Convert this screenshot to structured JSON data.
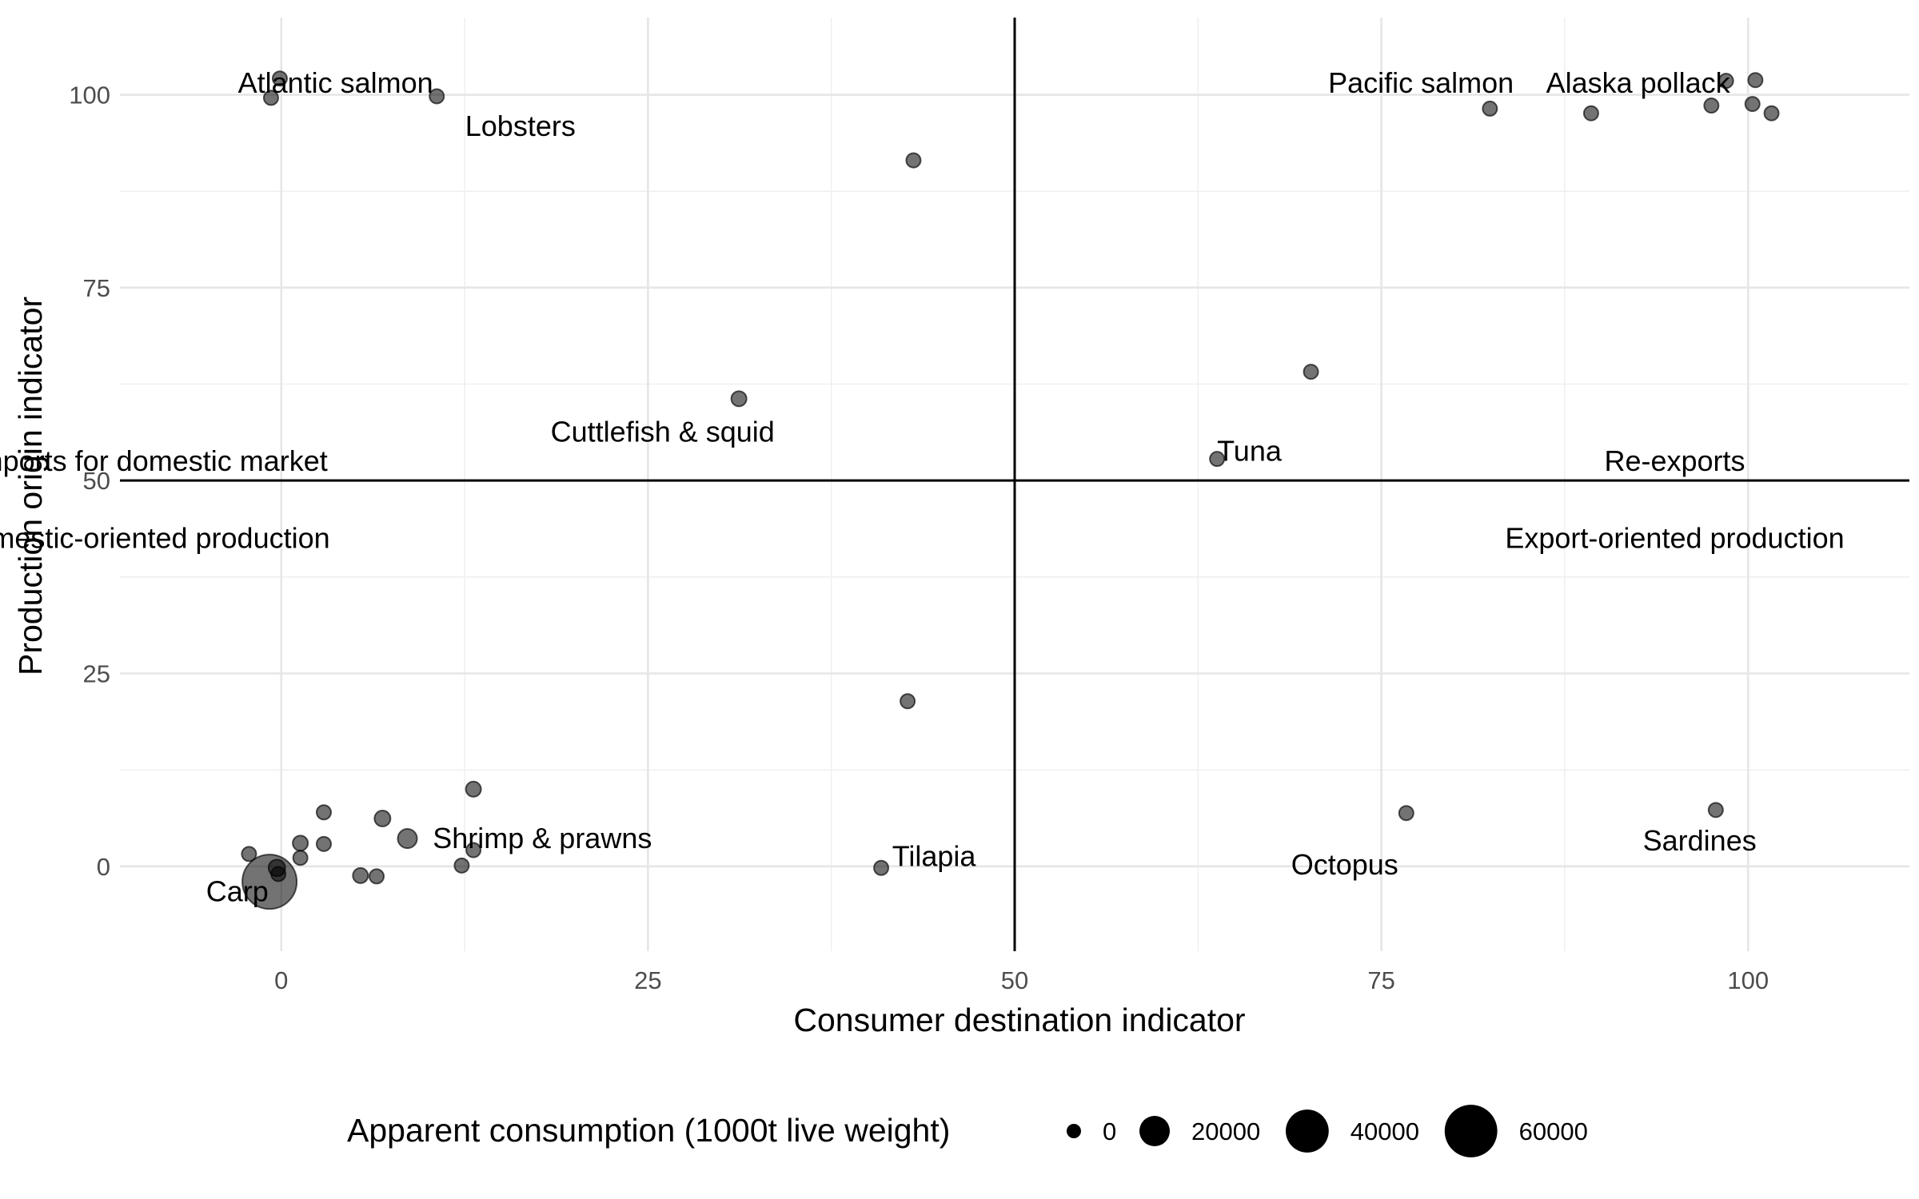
{
  "chart_data": {
    "type": "scatter",
    "xlabel": "Consumer destination indicator",
    "ylabel": "Production origin indicator",
    "xlim": [
      -11,
      111
    ],
    "ylim": [
      -11,
      110
    ],
    "x_ticks": [
      0,
      25,
      50,
      75,
      100
    ],
    "y_ticks": [
      0,
      25,
      50,
      75,
      100
    ],
    "grid": true,
    "reference_lines": {
      "x": 50,
      "y": 50
    },
    "quadrant_labels": [
      {
        "text": "Imports for domestic market",
        "x": -9,
        "y": 52.5
      },
      {
        "text": "Domestic-oriented production",
        "x": -9.5,
        "y": 42.5
      },
      {
        "text": "Re-exports",
        "x": 95,
        "y": 52.5
      },
      {
        "text": "Export-oriented production",
        "x": 95,
        "y": 42.5
      }
    ],
    "labels": [
      {
        "text": "Atlantic salmon",
        "x": 3.7,
        "y": 101.5
      },
      {
        "text": "Lobsters",
        "x": 16.3,
        "y": 95.9
      },
      {
        "text": "Pacific salmon",
        "x": 77.7,
        "y": 101.5
      },
      {
        "text": "Alaska pollack",
        "x": 92.5,
        "y": 101.5
      },
      {
        "text": "Cuttlefish & squid",
        "x": 26,
        "y": 56.3
      },
      {
        "text": "Tuna",
        "x": 66,
        "y": 53.8
      },
      {
        "text": "Shrimp & prawns",
        "x": 17.8,
        "y": 3.6
      },
      {
        "text": "Tilapia",
        "x": 44.5,
        "y": 1.3
      },
      {
        "text": "Octopus",
        "x": 72.5,
        "y": 0.2
      },
      {
        "text": "Sardines",
        "x": 96.7,
        "y": 3.3
      },
      {
        "text": "Carp",
        "x": -3,
        "y": -3.3
      }
    ],
    "points": [
      {
        "x": -0.7,
        "y": 99.6,
        "size": 1500
      },
      {
        "x": -0.1,
        "y": 102.1,
        "size": 1500
      },
      {
        "x": 10.6,
        "y": 99.8,
        "size": 800
      },
      {
        "x": 43.1,
        "y": 91.5,
        "size": 1500
      },
      {
        "x": 82.4,
        "y": 98.2,
        "size": 1500
      },
      {
        "x": 89.3,
        "y": 97.6,
        "size": 1800
      },
      {
        "x": 97.5,
        "y": 98.6,
        "size": 1200
      },
      {
        "x": 98.5,
        "y": 101.8,
        "size": 1200
      },
      {
        "x": 100.5,
        "y": 101.9,
        "size": 1200
      },
      {
        "x": 100.3,
        "y": 98.8,
        "size": 1500
      },
      {
        "x": 101.6,
        "y": 97.6,
        "size": 1200
      },
      {
        "x": 31.2,
        "y": 60.6,
        "size": 5000
      },
      {
        "x": 70.2,
        "y": 64.1,
        "size": 1800
      },
      {
        "x": 63.8,
        "y": 52.8,
        "size": 1800
      },
      {
        "x": 42.7,
        "y": 21.4,
        "size": 3000
      },
      {
        "x": 76.7,
        "y": 6.9,
        "size": 1200
      },
      {
        "x": 97.8,
        "y": 7.3,
        "size": 1200
      },
      {
        "x": 40.9,
        "y": -0.2,
        "size": 4000
      },
      {
        "x": 13.1,
        "y": 10.0,
        "size": 5000
      },
      {
        "x": 6.9,
        "y": 6.2,
        "size": 5500
      },
      {
        "x": 8.6,
        "y": 3.6,
        "size": 8000
      },
      {
        "x": 2.9,
        "y": 7.0,
        "size": 4000
      },
      {
        "x": 2.9,
        "y": 2.9,
        "size": 4000
      },
      {
        "x": 1.3,
        "y": 3.0,
        "size": 5000
      },
      {
        "x": 13.1,
        "y": 2.1,
        "size": 2500
      },
      {
        "x": 12.3,
        "y": 0.1,
        "size": 1500
      },
      {
        "x": -2.2,
        "y": 1.6,
        "size": 4500
      },
      {
        "x": 1.3,
        "y": 1.1,
        "size": 3500
      },
      {
        "x": -0.3,
        "y": -0.2,
        "size": 6000
      },
      {
        "x": 5.4,
        "y": -1.2,
        "size": 5000
      },
      {
        "x": 6.5,
        "y": -1.3,
        "size": 4000
      },
      {
        "x": -0.2,
        "y": -1.0,
        "size": 2500
      },
      {
        "x": -0.8,
        "y": -2.0,
        "size": 64000
      }
    ],
    "legend": {
      "title": "Apparent consumption (1000t live weight)",
      "position": "bottom",
      "entries": [
        {
          "label": "0",
          "size": 0
        },
        {
          "label": "20000",
          "size": 20000
        },
        {
          "label": "40000",
          "size": 40000
        },
        {
          "label": "60000",
          "size": 60000
        }
      ]
    }
  }
}
